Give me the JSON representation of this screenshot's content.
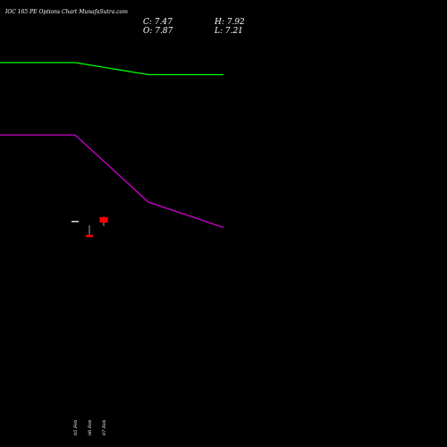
{
  "header": {
    "title": "IOC 165 PE Options  Chart MunafaSutra.com",
    "close_label": "C: 7.47",
    "high_label": "H: 7.92",
    "open_label": "O: 7.87",
    "low_label": "L: 7.21"
  },
  "colors": {
    "background": "#000000",
    "upper_line": "#00ff00",
    "lower_line": "#cc00cc",
    "bear_candle": "#ff0000",
    "neutral_candle": "#dddddd",
    "text": "#ffffff"
  },
  "chart_data": {
    "type": "candlestick",
    "x_labels": [
      "05 Feb",
      "06 Feb",
      "07 Feb"
    ],
    "candles": [
      {
        "date": "05 Feb",
        "open": 7.6,
        "high": 7.6,
        "low": 7.6,
        "close": 7.6
      },
      {
        "date": "06 Feb",
        "open": 6.55,
        "high": 7.25,
        "low": 6.4,
        "close": 6.4
      },
      {
        "date": "07 Feb",
        "open": 7.87,
        "high": 7.92,
        "low": 7.21,
        "close": 7.47
      }
    ],
    "upper_line": {
      "x": [
        "",
        "05 Feb",
        "06 Feb",
        "07 Feb"
      ],
      "values": [
        19.4,
        19.4,
        18.5,
        18.5
      ]
    },
    "lower_line": {
      "x": [
        "",
        "05 Feb",
        "06 Feb",
        "07 Feb"
      ],
      "values": [
        14.0,
        14.0,
        9.0,
        7.1
      ]
    }
  }
}
